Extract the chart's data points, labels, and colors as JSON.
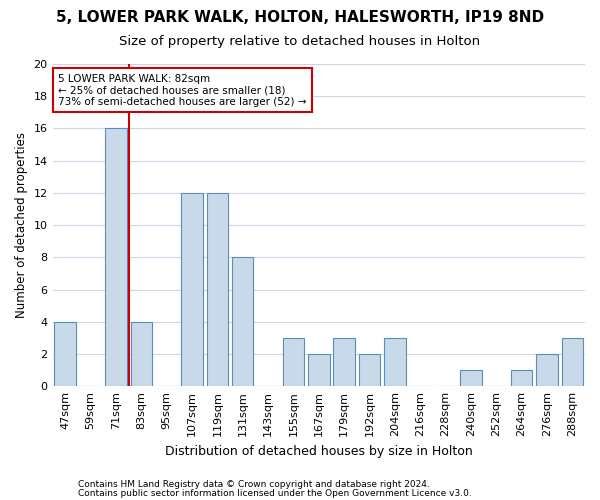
{
  "title1": "5, LOWER PARK WALK, HOLTON, HALESWORTH, IP19 8ND",
  "title2": "Size of property relative to detached houses in Holton",
  "xlabel": "Distribution of detached houses by size in Holton",
  "ylabel": "Number of detached properties",
  "categories": [
    "47sqm",
    "59sqm",
    "71sqm",
    "83sqm",
    "95sqm",
    "107sqm",
    "119sqm",
    "131sqm",
    "143sqm",
    "155sqm",
    "167sqm",
    "179sqm",
    "192sqm",
    "204sqm",
    "216sqm",
    "228sqm",
    "240sqm",
    "252sqm",
    "264sqm",
    "276sqm",
    "288sqm"
  ],
  "values": [
    4,
    0,
    16,
    4,
    0,
    12,
    12,
    8,
    0,
    3,
    2,
    3,
    2,
    3,
    0,
    0,
    1,
    0,
    1,
    2,
    3
  ],
  "bar_color": "#c8d9ea",
  "bar_edge_color": "#5b8db8",
  "vline_x": 2.5,
  "vline_color": "#cc0000",
  "annotation_text": "5 LOWER PARK WALK: 82sqm\n← 25% of detached houses are smaller (18)\n73% of semi-detached houses are larger (52) →",
  "annotation_box_color": "#ffffff",
  "annotation_box_edge": "#cc0000",
  "ylim": [
    0,
    20
  ],
  "yticks": [
    0,
    2,
    4,
    6,
    8,
    10,
    12,
    14,
    16,
    18,
    20
  ],
  "grid_color": "#c8d8e8",
  "footer1": "Contains HM Land Registry data © Crown copyright and database right 2024.",
  "footer2": "Contains public sector information licensed under the Open Government Licence v3.0.",
  "bg_color": "#ffffff",
  "title1_fontsize": 11,
  "title2_fontsize": 9.5,
  "xlabel_fontsize": 9,
  "ylabel_fontsize": 8.5,
  "annot_fontsize": 7.5,
  "tick_fontsize": 8,
  "footer_fontsize": 6.5
}
